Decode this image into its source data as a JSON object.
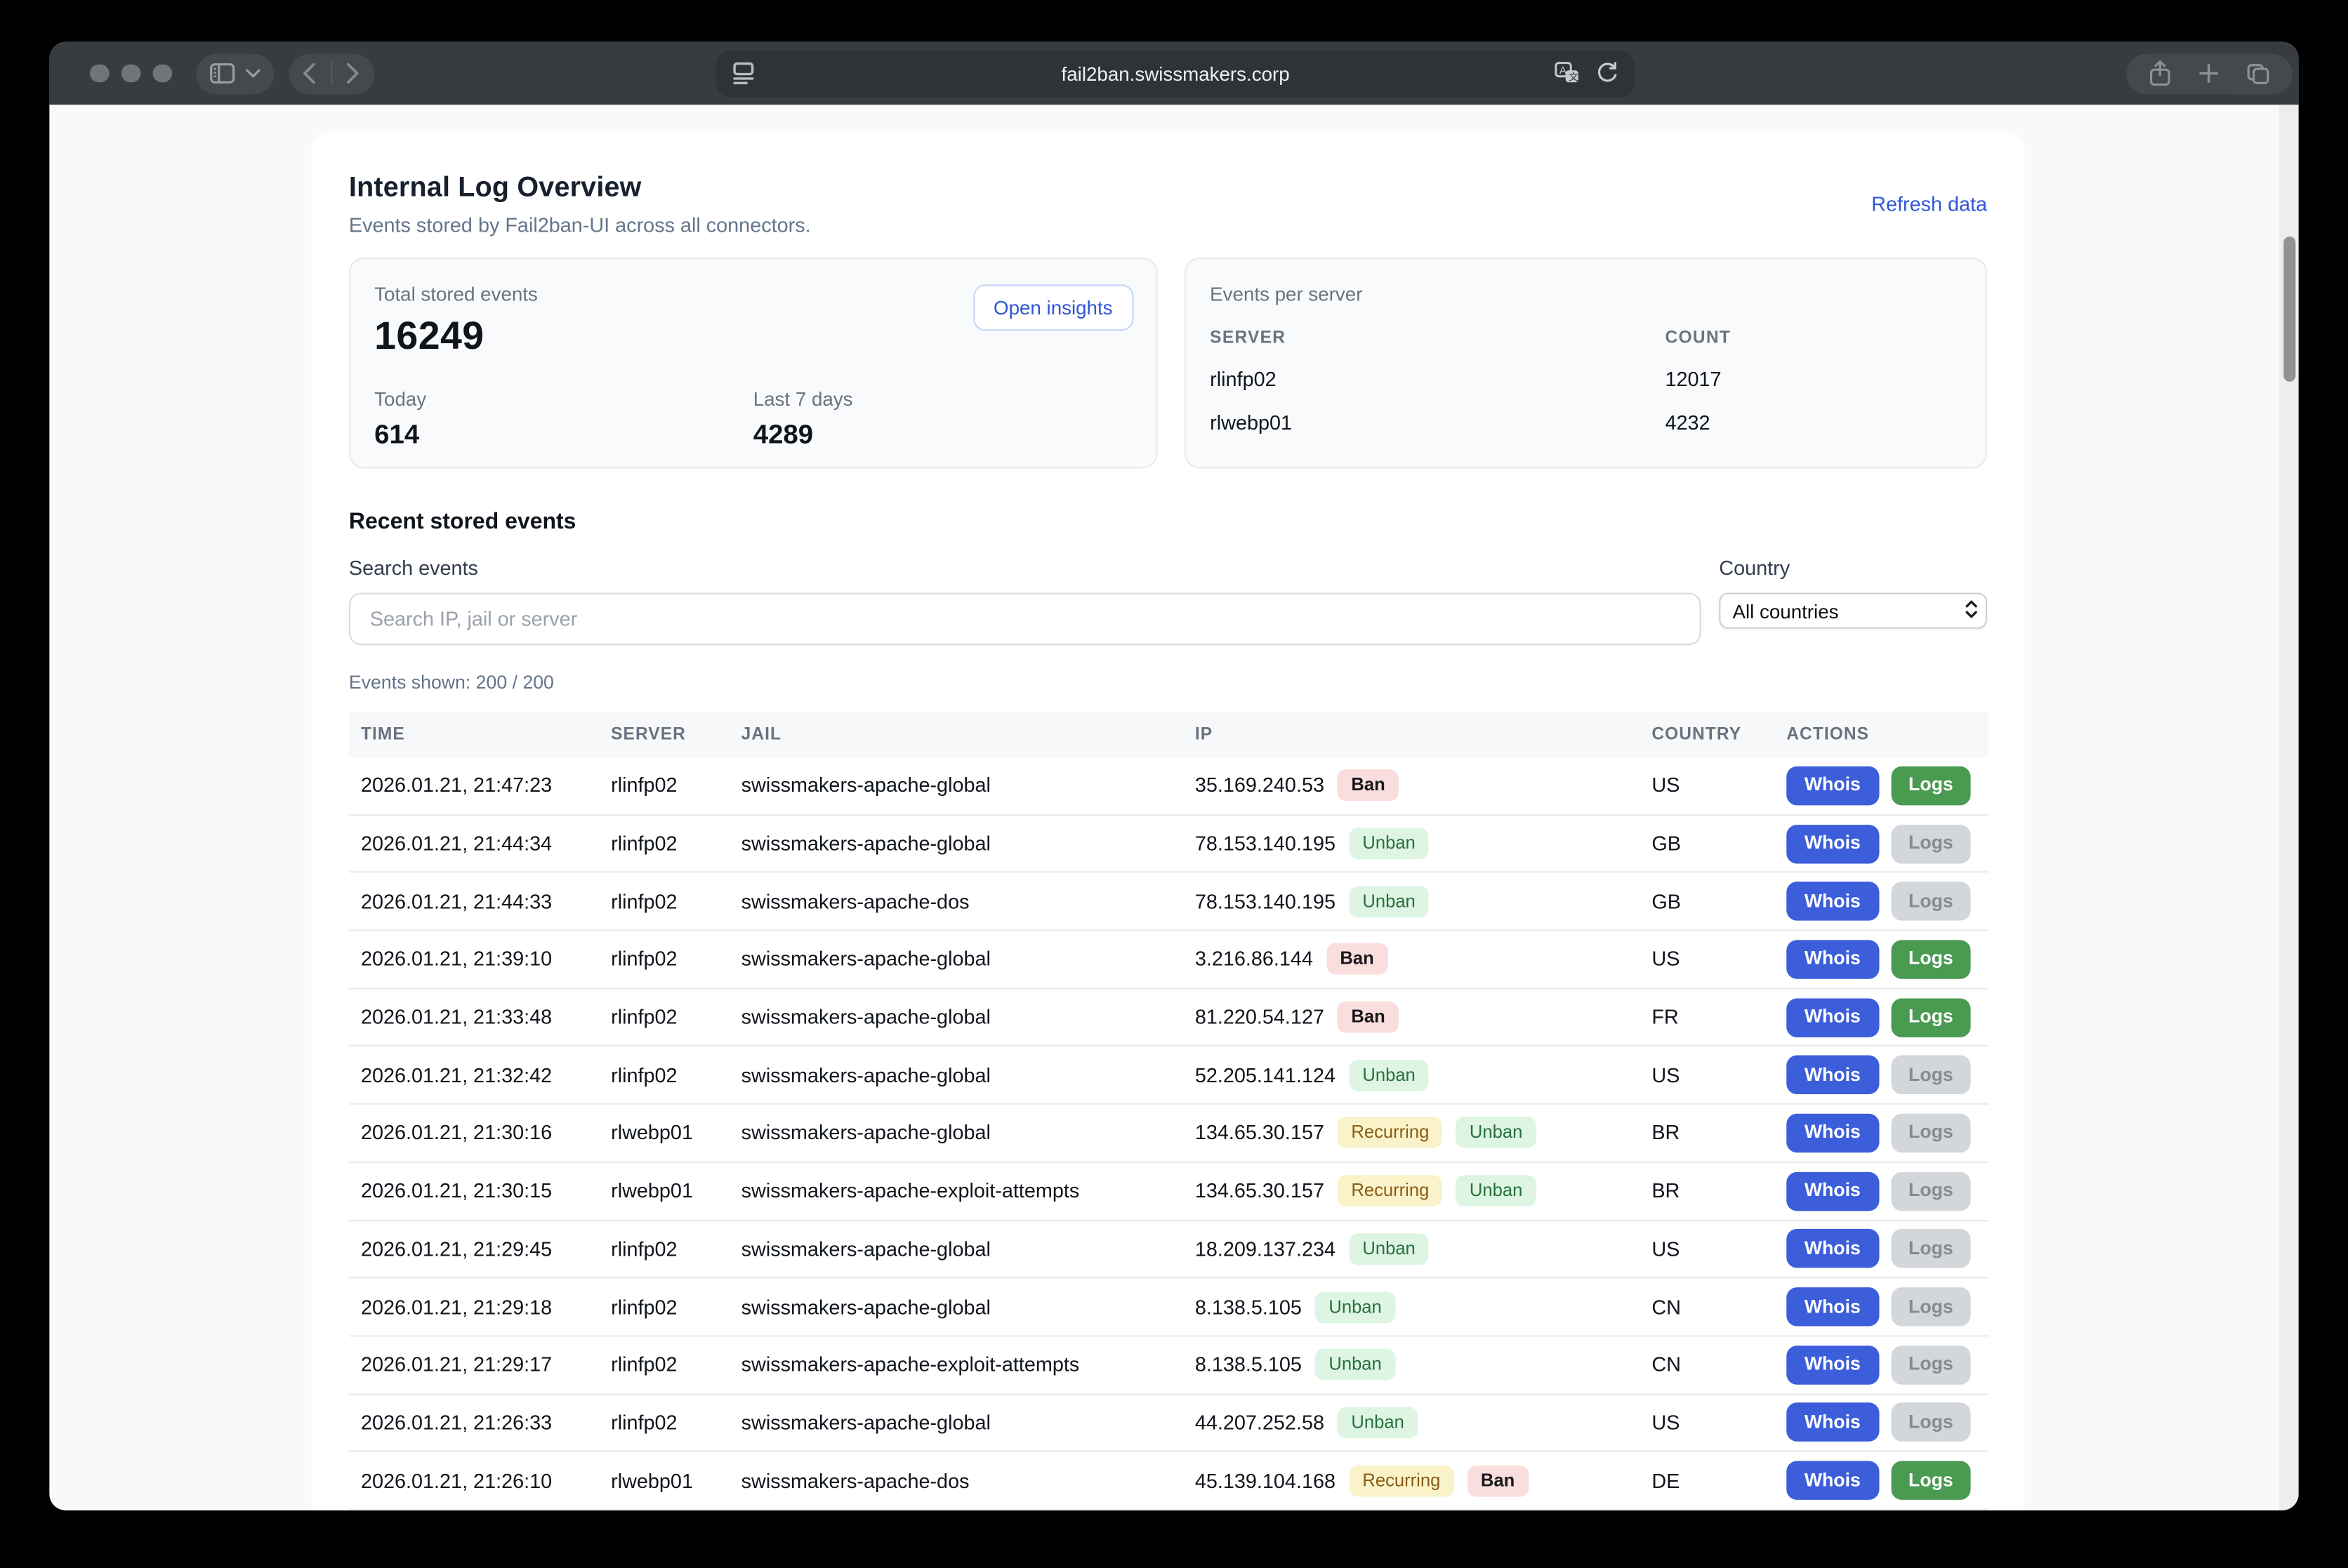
{
  "browser": {
    "address": "fail2ban.swissmakers.corp"
  },
  "icons": {
    "sidebar-toggle-icon": "panel-left with chevron-down",
    "back-icon": "‹",
    "forward-icon": "›",
    "reader-format-icon": "screen with text lines",
    "translate-icon": "dual speech bubbles",
    "reload-icon": "↻",
    "share-icon": "square with up arrow",
    "new-tab-icon": "+",
    "tab-overview-icon": "two overlapping squares",
    "select-chevrons-icon": "up-down chevrons"
  },
  "colors": {
    "toolbar": "#383b3f",
    "page_bg": "#f8f9fa",
    "card_bg": "#ffffff",
    "link_blue": "#3155d8",
    "whois_blue": "#3c5edb",
    "logs_green": "#4a9a51",
    "logs_gray": "#d3d6da",
    "badge_ban_bg": "#f9dedd",
    "badge_unban_bg": "#def5e4",
    "badge_recurring_bg": "#faf3c9"
  },
  "header": {
    "title": "Internal Log Overview",
    "subtitle": "Events stored by Fail2ban-UI across all connectors.",
    "refresh_label": "Refresh data"
  },
  "stats": {
    "total_label": "Total stored events",
    "total_value": "16249",
    "open_insights_label": "Open insights",
    "today_label": "Today",
    "today_value": "614",
    "last7_label": "Last 7 days",
    "last7_value": "4289"
  },
  "events_per_server": {
    "title": "Events per server",
    "col_server": "SERVER",
    "col_count": "COUNT",
    "rows": [
      {
        "server": "rlinfp02",
        "count": "12017"
      },
      {
        "server": "rlwebp01",
        "count": "4232"
      }
    ]
  },
  "recent": {
    "title": "Recent stored events",
    "search_label": "Search events",
    "search_placeholder": "Search IP, jail or server",
    "country_label": "Country",
    "country_value": "All countries",
    "shown_text": "Events shown: 200 / 200",
    "table": {
      "columns": [
        "TIME",
        "SERVER",
        "JAIL",
        "IP",
        "COUNTRY",
        "ACTIONS"
      ],
      "actions": {
        "whois": "Whois",
        "logs": "Logs"
      },
      "rows": [
        {
          "time": "2026.01.21, 21:47:23",
          "server": "rlinfp02",
          "jail": "swissmakers-apache-global",
          "ip": "35.169.240.53",
          "badges": [
            "Ban"
          ],
          "country": "US",
          "logs_enabled": true
        },
        {
          "time": "2026.01.21, 21:44:34",
          "server": "rlinfp02",
          "jail": "swissmakers-apache-global",
          "ip": "78.153.140.195",
          "badges": [
            "Unban"
          ],
          "country": "GB",
          "logs_enabled": false
        },
        {
          "time": "2026.01.21, 21:44:33",
          "server": "rlinfp02",
          "jail": "swissmakers-apache-dos",
          "ip": "78.153.140.195",
          "badges": [
            "Unban"
          ],
          "country": "GB",
          "logs_enabled": false
        },
        {
          "time": "2026.01.21, 21:39:10",
          "server": "rlinfp02",
          "jail": "swissmakers-apache-global",
          "ip": "3.216.86.144",
          "badges": [
            "Ban"
          ],
          "country": "US",
          "logs_enabled": true
        },
        {
          "time": "2026.01.21, 21:33:48",
          "server": "rlinfp02",
          "jail": "swissmakers-apache-global",
          "ip": "81.220.54.127",
          "badges": [
            "Ban"
          ],
          "country": "FR",
          "logs_enabled": true
        },
        {
          "time": "2026.01.21, 21:32:42",
          "server": "rlinfp02",
          "jail": "swissmakers-apache-global",
          "ip": "52.205.141.124",
          "badges": [
            "Unban"
          ],
          "country": "US",
          "logs_enabled": false
        },
        {
          "time": "2026.01.21, 21:30:16",
          "server": "rlwebp01",
          "jail": "swissmakers-apache-global",
          "ip": "134.65.30.157",
          "badges": [
            "Recurring",
            "Unban"
          ],
          "country": "BR",
          "logs_enabled": false
        },
        {
          "time": "2026.01.21, 21:30:15",
          "server": "rlwebp01",
          "jail": "swissmakers-apache-exploit-attempts",
          "ip": "134.65.30.157",
          "badges": [
            "Recurring",
            "Unban"
          ],
          "country": "BR",
          "logs_enabled": false
        },
        {
          "time": "2026.01.21, 21:29:45",
          "server": "rlinfp02",
          "jail": "swissmakers-apache-global",
          "ip": "18.209.137.234",
          "badges": [
            "Unban"
          ],
          "country": "US",
          "logs_enabled": false
        },
        {
          "time": "2026.01.21, 21:29:18",
          "server": "rlinfp02",
          "jail": "swissmakers-apache-global",
          "ip": "8.138.5.105",
          "badges": [
            "Unban"
          ],
          "country": "CN",
          "logs_enabled": false
        },
        {
          "time": "2026.01.21, 21:29:17",
          "server": "rlinfp02",
          "jail": "swissmakers-apache-exploit-attempts",
          "ip": "8.138.5.105",
          "badges": [
            "Unban"
          ],
          "country": "CN",
          "logs_enabled": false
        },
        {
          "time": "2026.01.21, 21:26:33",
          "server": "rlinfp02",
          "jail": "swissmakers-apache-global",
          "ip": "44.207.252.58",
          "badges": [
            "Unban"
          ],
          "country": "US",
          "logs_enabled": false
        },
        {
          "time": "2026.01.21, 21:26:10",
          "server": "rlwebp01",
          "jail": "swissmakers-apache-dos",
          "ip": "45.139.104.168",
          "badges": [
            "Recurring",
            "Ban"
          ],
          "country": "DE",
          "logs_enabled": true
        }
      ]
    }
  }
}
